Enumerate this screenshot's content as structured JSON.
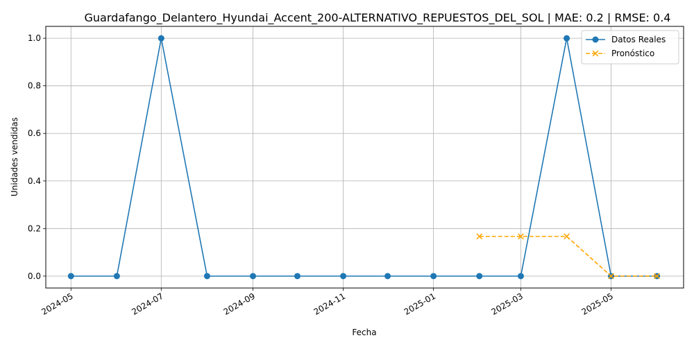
{
  "chart_data": {
    "type": "line",
    "title": "Guardafango_Delantero_Hyundai_Accent_200-ALTERNATIVO_REPUESTOS_DEL_SOL | MAE: 0.2 | RMSE: 0.4",
    "xlabel": "Fecha",
    "ylabel": "Unidades vendidas",
    "x_ticks": [
      "2024-05",
      "2024-07",
      "2024-09",
      "2024-11",
      "2025-01",
      "2025-03",
      "2025-05"
    ],
    "y_ticks": [
      "0.0",
      "0.2",
      "0.4",
      "0.6",
      "0.8",
      "1.0"
    ],
    "ylim": [
      -0.05,
      1.05
    ],
    "xlim": [
      "2024-04-14",
      "2025-06-19"
    ],
    "grid": true,
    "legend_position": "top-right",
    "series": [
      {
        "name": "Datos Reales",
        "color": "#1f77b4",
        "style": "solid",
        "marker": "circle",
        "x": [
          "2024-05-01",
          "2024-06-01",
          "2024-07-01",
          "2024-08-01",
          "2024-09-01",
          "2024-10-01",
          "2024-11-01",
          "2024-12-01",
          "2025-01-01",
          "2025-02-01",
          "2025-03-01",
          "2025-04-01",
          "2025-05-01",
          "2025-06-01"
        ],
        "values": [
          0,
          0,
          1,
          0,
          0,
          0,
          0,
          0,
          0,
          0,
          0,
          1,
          0,
          0
        ]
      },
      {
        "name": "Pronóstico",
        "color": "#ffa500",
        "style": "dashed",
        "marker": "x",
        "x": [
          "2025-02-01",
          "2025-03-01",
          "2025-04-01",
          "2025-05-01",
          "2025-06-01"
        ],
        "values": [
          0.167,
          0.167,
          0.167,
          0,
          0
        ]
      }
    ]
  }
}
